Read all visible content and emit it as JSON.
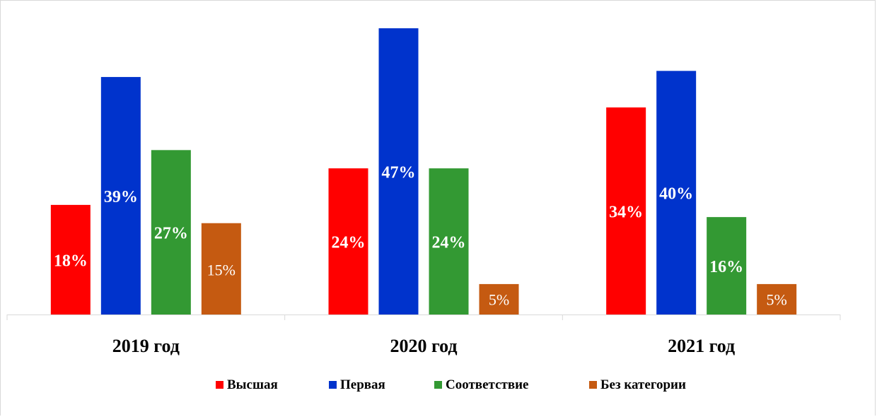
{
  "chart_data": {
    "type": "bar",
    "categories": [
      "2019 год",
      "2020 год",
      "2021 год"
    ],
    "series": [
      {
        "name": "Высшая",
        "values": [
          18,
          24,
          34
        ],
        "labels": [
          "18%",
          "24%",
          "34%"
        ],
        "color": "#ff0000",
        "label_bold": true
      },
      {
        "name": "Первая",
        "values": [
          39,
          47,
          40
        ],
        "labels": [
          "39%",
          "47%",
          "40%"
        ],
        "color": "#0033cc",
        "label_bold": true
      },
      {
        "name": "Соответствие",
        "values": [
          27,
          24,
          16
        ],
        "labels": [
          "27%",
          "24%",
          "16%"
        ],
        "color": "#339933",
        "label_bold": true
      },
      {
        "name": "Без категории",
        "values": [
          15,
          5,
          5
        ],
        "labels": [
          "15%",
          "5%",
          "5%"
        ],
        "color": "#c55a11",
        "label_bold": false
      }
    ],
    "ylim": [
      0,
      47
    ],
    "grid": false,
    "legend": "bottom"
  }
}
